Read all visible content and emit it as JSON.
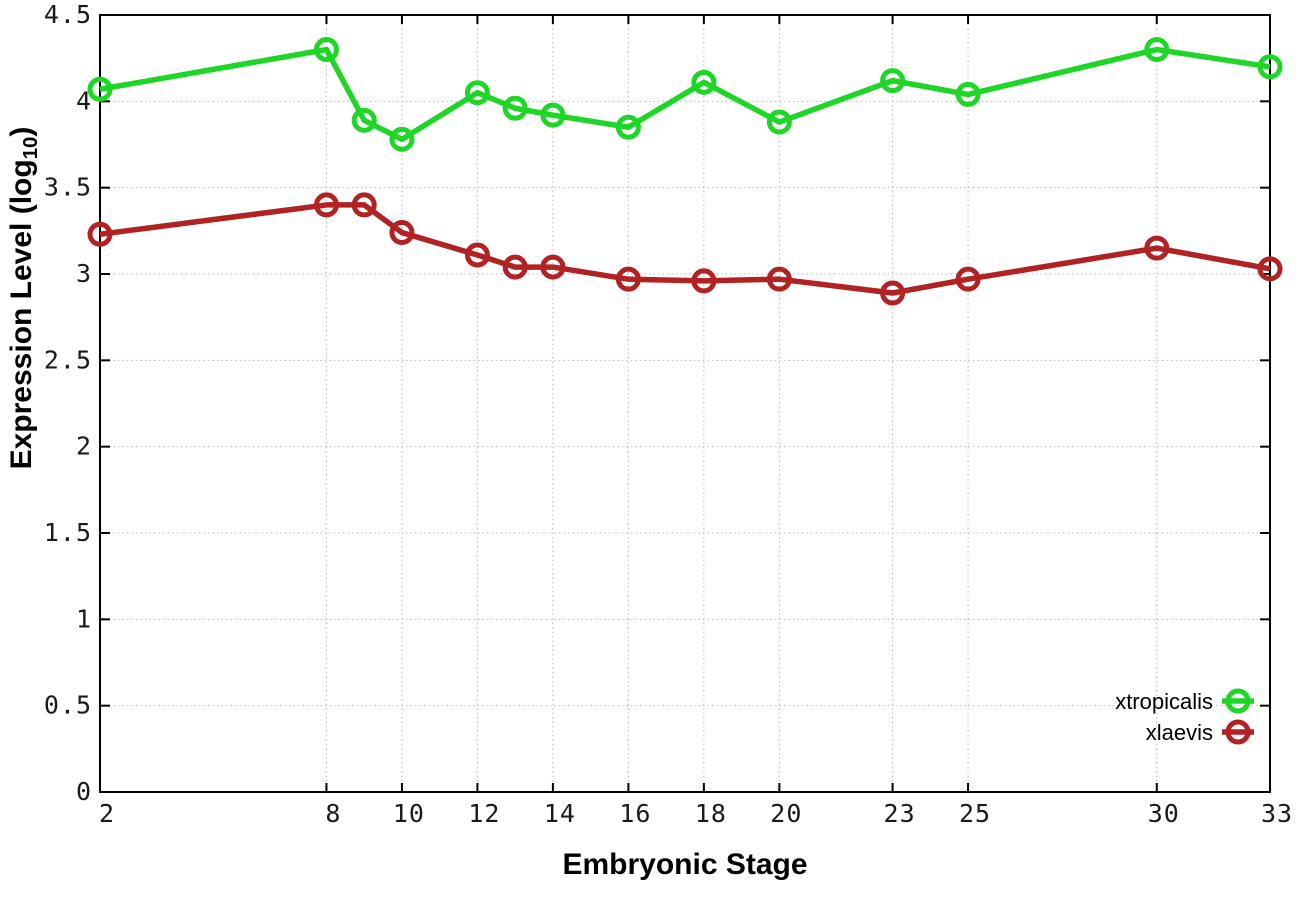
{
  "figure": {
    "background": "#ffffff",
    "xlabel": "Embryonic Stage",
    "ylabel_prefix": "Expression Level (log",
    "ylabel_sub": "10",
    "ylabel_suffix": ")"
  },
  "style": {
    "axis_color": "#000000",
    "grid_color": "#b9b9b9",
    "tick_label_color": "#1a1a1a",
    "legend_text_color": "#000000"
  },
  "chart_data": {
    "type": "line",
    "title": "",
    "xlabel": "Embryonic Stage",
    "ylabel": "Expression Level (log10)",
    "xlim": [
      2,
      33
    ],
    "ylim": [
      0,
      4.5
    ],
    "grid": true,
    "legend_position": "bottom-right-inside",
    "x": [
      2,
      8,
      9,
      10,
      12,
      13,
      14,
      16,
      18,
      20,
      23,
      25,
      30,
      33
    ],
    "xtick_values": [
      2,
      8,
      10,
      12,
      14,
      16,
      18,
      20,
      23,
      25,
      30,
      33
    ],
    "xtick_labels": [
      "2",
      "8",
      "10",
      "12",
      "14",
      "16",
      "18",
      "20",
      "23",
      "25",
      "30",
      "33"
    ],
    "ytick_values": [
      0,
      0.5,
      1,
      1.5,
      2,
      2.5,
      3,
      3.5,
      4,
      4.5
    ],
    "ytick_labels": [
      "0",
      "0.5",
      "1",
      "1.5",
      "2",
      "2.5",
      "3",
      "3.5",
      "4",
      "4.5"
    ],
    "series": [
      {
        "name": "xtropicalis",
        "color": "#1dd626",
        "marker": "open-circle",
        "values": [
          4.07,
          4.3,
          3.89,
          3.78,
          4.05,
          3.96,
          3.92,
          3.85,
          4.11,
          3.88,
          4.12,
          4.04,
          4.3,
          4.2
        ]
      },
      {
        "name": "xlaevis",
        "color": "#b22222",
        "marker": "open-circle",
        "values": [
          3.23,
          3.4,
          3.4,
          3.24,
          3.11,
          3.04,
          3.04,
          2.97,
          2.96,
          2.97,
          2.89,
          2.97,
          3.15,
          3.03
        ]
      }
    ]
  }
}
